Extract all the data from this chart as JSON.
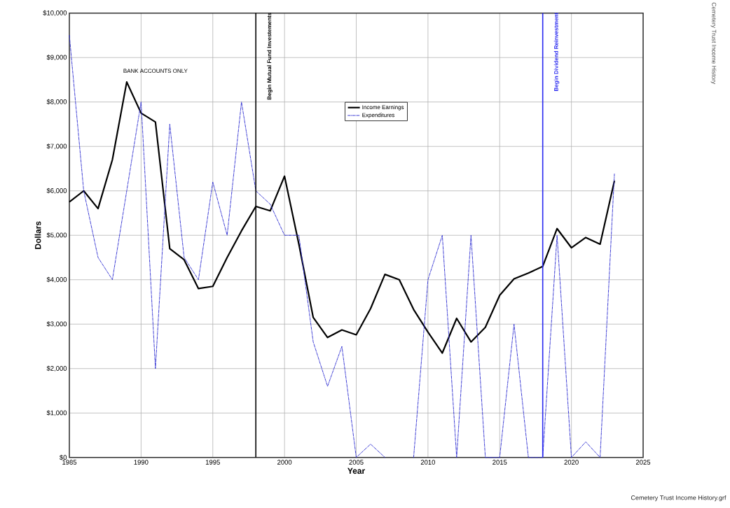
{
  "chart_data": {
    "type": "line",
    "title": "Cemetery Trust Income History",
    "xlabel": "Year",
    "ylabel": "Dollars",
    "x": [
      1985,
      1986,
      1987,
      1988,
      1989,
      1990,
      1991,
      1992,
      1993,
      1994,
      1995,
      1996,
      1997,
      1998,
      1999,
      2000,
      2001,
      2002,
      2003,
      2004,
      2005,
      2006,
      2007,
      2008,
      2009,
      2010,
      2011,
      2012,
      2013,
      2014,
      2015,
      2016,
      2017,
      2018,
      2019,
      2020,
      2021,
      2022,
      2023
    ],
    "series": [
      {
        "name": "Income Earnings",
        "color": "#000000",
        "line_style": "solid",
        "values": [
          5750,
          6000,
          5600,
          6700,
          8450,
          7750,
          7550,
          4700,
          4450,
          3800,
          3850,
          4500,
          5100,
          5650,
          5550,
          6330,
          4800,
          3150,
          2700,
          2870,
          2760,
          3350,
          4120,
          4000,
          3330,
          2820,
          2350,
          3130,
          2600,
          2930,
          3650,
          4020,
          4150,
          4300,
          5150,
          4720,
          4950,
          4800,
          6230
        ]
      },
      {
        "name": "Expenditures",
        "color": "#2828d0",
        "line_style": "dashed",
        "values": [
          9500,
          6000,
          4500,
          4000,
          6000,
          8000,
          2000,
          7500,
          4500,
          4000,
          6200,
          5000,
          8000,
          6000,
          5700,
          5000,
          5000,
          2600,
          1600,
          2500,
          0,
          300,
          0,
          null,
          0,
          4000,
          5000,
          0,
          5000,
          0,
          0,
          3000,
          0,
          0,
          5000,
          0,
          350,
          0,
          6400
        ]
      }
    ],
    "xlim": [
      1985,
      2025
    ],
    "xticks": [
      1985,
      1990,
      1995,
      2000,
      2005,
      2010,
      2015,
      2020,
      2025
    ],
    "ylim": [
      0,
      10000
    ],
    "yticks": [
      {
        "value": 0,
        "label": "$0"
      },
      {
        "value": 1000,
        "label": "$1,000"
      },
      {
        "value": 2000,
        "label": "$2,000"
      },
      {
        "value": 3000,
        "label": "$3,000"
      },
      {
        "value": 4000,
        "label": "$4,000"
      },
      {
        "value": 5000,
        "label": "$5,000"
      },
      {
        "value": 6000,
        "label": "$6,000"
      },
      {
        "value": 7000,
        "label": "$7,000"
      },
      {
        "value": 8000,
        "label": "$8,000"
      },
      {
        "value": 9000,
        "label": "$9,000"
      },
      {
        "value": 10000,
        "label": "$10,000"
      }
    ],
    "ref_lines": [
      {
        "axis": "x",
        "value": 1998,
        "label": "Begin Mutual Fund Investements",
        "color": "#000000"
      },
      {
        "axis": "x",
        "value": 2018,
        "label": "Begin Dividend Reinvestment",
        "color": "#2828f0"
      }
    ],
    "annotations": [
      "BANK ACCOUNTS ONLY",
      "Cemetery Trust Income History.grf"
    ],
    "grid": true,
    "legend": "top",
    "marker": "none"
  }
}
